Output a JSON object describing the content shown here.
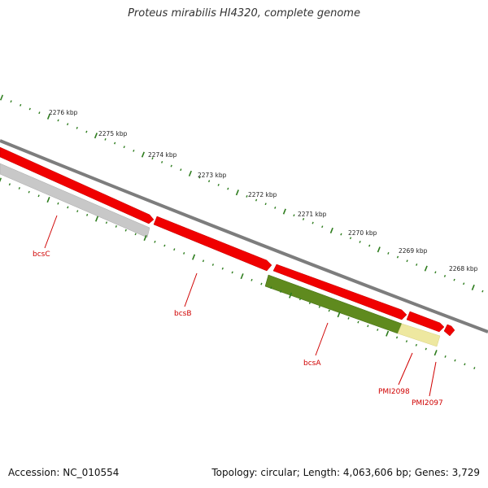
{
  "title": "Proteus mirabilis HI4320, complete genome",
  "footer": {
    "accession": "Accession: NC_010554",
    "stats": "Topology: circular; Length: 4,063,606 bp; Genes: 3,729"
  },
  "colors": {
    "backbone": "#808080",
    "forward_gene": "#ff0000",
    "cds_green": "#5f8a1e",
    "pseudo_yellow": "#eee8a0",
    "grey_gene": "#c4c4c4",
    "tick": "#2e7d1e",
    "label": "#d00000"
  },
  "scale_labels": [
    "2276 kbp",
    "2275 kbp",
    "2274 kbp",
    "2273 kbp",
    "2272 kbp",
    "2271 kbp",
    "2270 kbp",
    "2269 kbp",
    "2268 kbp"
  ],
  "genes": [
    {
      "name": "bcsC",
      "color": "grey"
    },
    {
      "name": "bcsB",
      "color": "red"
    },
    {
      "name": "bcsA",
      "color": "green"
    },
    {
      "name": "PMI2098",
      "color": "yellow"
    },
    {
      "name": "PMI2097",
      "color": "yellow"
    }
  ]
}
